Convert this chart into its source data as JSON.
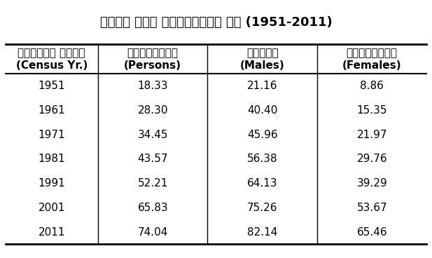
{
  "title": "भारत में साक्षरता दर (1951-2011)",
  "col1_header_line1": "जनगणना वर्ष",
  "col1_header_line2": "(Census Yr.)",
  "col2_header_line1": "व्यक्तिं",
  "col2_header_line2": "(Persons)",
  "col3_header_line1": "पुरुष",
  "col3_header_line2": "(Males)",
  "col4_header_line1": "मिहिलाएँ",
  "col4_header_line2": "(Females)",
  "years": [
    "1951",
    "1961",
    "1971",
    "1981",
    "1991",
    "2001",
    "2011"
  ],
  "persons": [
    "18.33",
    "28.30",
    "34.45",
    "43.57",
    "52.21",
    "65.83",
    "74.04"
  ],
  "males": [
    "21.16",
    "40.40",
    "45.96",
    "56.38",
    "64.13",
    "75.26",
    "82.14"
  ],
  "females": [
    "8.86",
    "15.35",
    "21.97",
    "29.76",
    "39.29",
    "53.67",
    "65.46"
  ],
  "background_color": "#ffffff",
  "header_bg": "#ffffff",
  "border_color": "#000000",
  "text_color": "#000000",
  "title_fontsize": 13,
  "header_fontsize": 11,
  "data_fontsize": 11
}
